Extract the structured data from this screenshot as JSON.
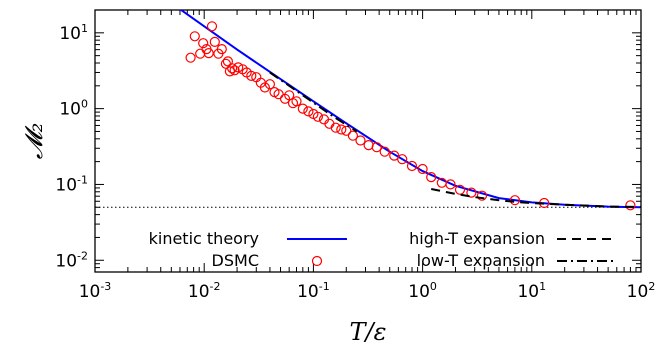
{
  "chart_data": {
    "type": "scatter",
    "xlabel": "T/ε",
    "ylabel": "𝓜₂",
    "xscale": "log",
    "yscale": "log",
    "xlim": [
      0.001,
      100
    ],
    "ylim": [
      0.007,
      20
    ],
    "x_ticks": [
      {
        "base": "10",
        "exp": "-3"
      },
      {
        "base": "10",
        "exp": "-2"
      },
      {
        "base": "10",
        "exp": "-1"
      },
      {
        "base": "10",
        "exp": "0"
      },
      {
        "base": "10",
        "exp": "1"
      },
      {
        "base": "10",
        "exp": "2"
      }
    ],
    "y_ticks": [
      {
        "base": "10",
        "exp": "-2"
      },
      {
        "base": "10",
        "exp": "-1"
      },
      {
        "base": "10",
        "exp": "0"
      },
      {
        "base": "10",
        "exp": "1"
      }
    ],
    "grid": false,
    "legend_position": "bottom",
    "reference_line": {
      "y": 0.05,
      "style": "dotted"
    },
    "series": [
      {
        "name": "kinetic theory",
        "kind": "line",
        "color": "#0000ff",
        "dash": "solid",
        "x": [
          0.001,
          0.006,
          0.01,
          0.02,
          0.05,
          0.1,
          0.2,
          0.5,
          1,
          2,
          5,
          10,
          20,
          50,
          100
        ],
        "y": [
          120,
          20.5,
          12.2,
          6.0,
          2.45,
          1.25,
          0.64,
          0.27,
          0.15,
          0.096,
          0.066,
          0.058,
          0.054,
          0.051,
          0.05
        ]
      },
      {
        "name": "DSMC",
        "kind": "scatter",
        "color": "#ff0000",
        "marker": "circle",
        "x": [
          0.0075,
          0.0082,
          0.0092,
          0.0098,
          0.0105,
          0.011,
          0.0118,
          0.0125,
          0.0135,
          0.0145,
          0.0158,
          0.0165,
          0.0172,
          0.018,
          0.019,
          0.0205,
          0.0225,
          0.0245,
          0.027,
          0.03,
          0.033,
          0.036,
          0.04,
          0.044,
          0.048,
          0.055,
          0.06,
          0.065,
          0.07,
          0.08,
          0.09,
          0.1,
          0.11,
          0.125,
          0.14,
          0.16,
          0.18,
          0.2,
          0.23,
          0.27,
          0.32,
          0.38,
          0.45,
          0.55,
          0.65,
          0.8,
          1.0,
          1.2,
          1.5,
          1.8,
          2.2,
          2.8,
          3.5,
          7,
          13,
          80
        ],
        "y": [
          4.7,
          9.0,
          5.3,
          7.3,
          6.1,
          5.4,
          12.2,
          7.6,
          5.3,
          6.1,
          3.9,
          4.2,
          3.1,
          3.4,
          3.2,
          3.5,
          3.3,
          3.0,
          2.7,
          2.6,
          2.2,
          1.9,
          2.1,
          1.65,
          1.55,
          1.35,
          1.5,
          1.18,
          1.25,
          1.0,
          0.92,
          0.85,
          0.78,
          0.72,
          0.63,
          0.56,
          0.53,
          0.51,
          0.44,
          0.38,
          0.33,
          0.31,
          0.27,
          0.24,
          0.215,
          0.175,
          0.16,
          0.125,
          0.105,
          0.1,
          0.085,
          0.078,
          0.071,
          0.062,
          0.057,
          0.053
        ]
      },
      {
        "name": "high-T expansion",
        "kind": "line",
        "color": "#000000",
        "dash": "dashed",
        "x": [
          1.2,
          2,
          3,
          5,
          8,
          12,
          20,
          50,
          100
        ],
        "y": [
          0.087,
          0.075,
          0.068,
          0.062,
          0.058,
          0.056,
          0.054,
          0.051,
          0.0505
        ]
      },
      {
        "name": "low-T expansion",
        "kind": "line",
        "color": "#000000",
        "dash": "dash-dot",
        "x": [
          0.04,
          0.06,
          0.1,
          0.15,
          0.25
        ],
        "y": [
          3.0,
          2.0,
          1.2,
          0.8,
          0.5
        ]
      }
    ]
  }
}
